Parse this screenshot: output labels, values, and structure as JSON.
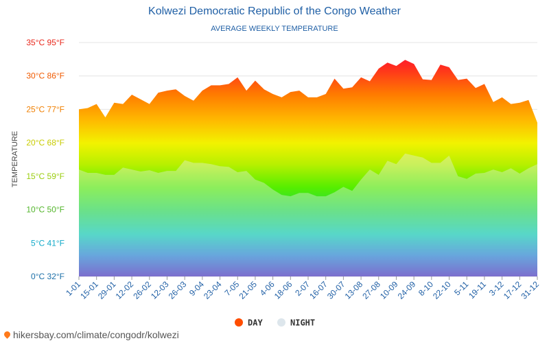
{
  "chart_data": {
    "type": "area",
    "title": "Kolwezi Democratic Republic of the Congo Weather",
    "subtitle": "AVERAGE WEEKLY TEMPERATURE",
    "ylabel": "TEMPERATURE",
    "ylim": [
      0,
      35
    ],
    "ytick_values": [
      0,
      5,
      10,
      15,
      20,
      25,
      30,
      35
    ],
    "ytick_labels": [
      "0°C 32°F",
      "5°C 41°F",
      "10°C 50°F",
      "15°C 59°F",
      "20°C 68°F",
      "25°C 77°F",
      "30°C 86°F",
      "35°C 95°F"
    ],
    "ytick_colors": [
      "#1b6fa8",
      "#13aac9",
      "#52b52a",
      "#9acd0d",
      "#c8cc00",
      "#f07f00",
      "#f05a00",
      "#e8281c"
    ],
    "xtick_labels": [
      "1-01",
      "15-01",
      "29-01",
      "12-02",
      "26-02",
      "12-03",
      "26-03",
      "9-04",
      "23-04",
      "7-05",
      "21-05",
      "4-06",
      "18-06",
      "2-07",
      "16-07",
      "30-07",
      "13-08",
      "27-08",
      "10-09",
      "24-09",
      "8-10",
      "22-10",
      "5-11",
      "19-11",
      "3-12",
      "17-12",
      "31-12"
    ],
    "series": [
      {
        "name": "DAY",
        "color": "#ff4d00",
        "values": [
          25.0,
          25.2,
          25.8,
          23.8,
          26.0,
          25.8,
          27.2,
          26.5,
          25.8,
          27.5,
          27.8,
          28.0,
          27.0,
          26.3,
          27.8,
          28.6,
          28.6,
          28.8,
          29.8,
          27.8,
          29.3,
          28.0,
          27.3,
          26.8,
          27.6,
          27.8,
          26.8,
          26.8,
          27.3,
          29.6,
          28.1,
          28.3,
          29.8,
          29.2,
          31.1,
          32.0,
          31.5,
          32.4,
          31.8,
          29.5,
          29.4,
          31.7,
          31.3,
          29.4,
          29.6,
          28.2,
          28.8,
          26.1,
          26.8,
          25.8,
          26.0,
          26.4,
          23.0
        ]
      },
      {
        "name": "NIGHT",
        "color": "#dde6ec",
        "values": [
          16.0,
          15.5,
          15.5,
          15.2,
          15.2,
          16.3,
          16.0,
          15.7,
          15.9,
          15.5,
          15.8,
          15.8,
          17.4,
          17.0,
          17.0,
          16.8,
          16.5,
          16.4,
          15.6,
          15.8,
          14.5,
          14.0,
          13.0,
          12.2,
          12.0,
          12.5,
          12.5,
          12.0,
          12.0,
          12.6,
          13.4,
          12.8,
          14.5,
          16.0,
          15.2,
          17.3,
          16.8,
          18.4,
          18.1,
          17.8,
          17.0,
          17.0,
          18.1,
          15.0,
          14.6,
          15.4,
          15.5,
          16.0,
          15.6,
          16.2,
          15.4,
          16.2,
          16.8
        ]
      }
    ],
    "legend": [
      "DAY",
      "NIGHT"
    ],
    "legend_position": "bottom-center"
  },
  "credit": "hikersbay.com/climate/congodr/kolwezi"
}
